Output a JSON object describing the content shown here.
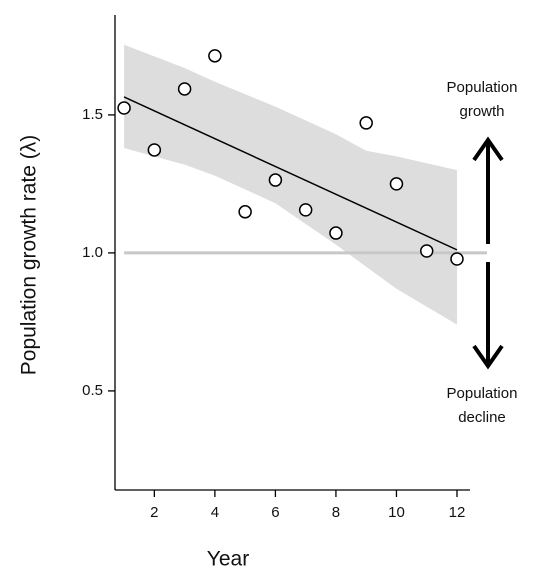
{
  "chart_data": {
    "type": "scatter",
    "ylabel": "Population growth rate (λ)",
    "xlabel": "Year",
    "x": [
      1,
      2,
      3,
      4,
      5,
      6,
      7,
      8,
      9,
      10,
      11,
      12
    ],
    "y": [
      1.525,
      1.373,
      1.594,
      1.714,
      1.149,
      1.264,
      1.156,
      1.072,
      1.471,
      1.25,
      1.007,
      0.978
    ],
    "point_color": "#000000",
    "fit": {
      "x": [
        1,
        12
      ],
      "y": [
        1.565,
        1.011
      ],
      "color": "#000000"
    },
    "band": {
      "x": [
        1,
        3,
        4,
        6,
        8,
        9,
        10,
        12
      ],
      "upper": [
        1.754,
        1.67,
        1.62,
        1.53,
        1.43,
        1.37,
        1.35,
        1.3
      ],
      "lower": [
        1.38,
        1.32,
        1.28,
        1.18,
        1.03,
        0.95,
        0.87,
        0.74
      ],
      "color": "#dddddd"
    },
    "hline": {
      "value": 1.0,
      "color": "#c8c8c8"
    },
    "xlim": [
      0.7,
      12.43
    ],
    "ylim": [
      0.141,
      1.862
    ],
    "xticks": [
      2,
      4,
      6,
      8,
      10,
      12
    ],
    "yticks": [
      0.5,
      {
        "value": 1.0,
        "label": "1.0"
      },
      1.5
    ],
    "annotations": [
      {
        "lines": [
          "Population",
          "growth"
        ]
      },
      {
        "lines": [
          "Population",
          "decline"
        ]
      }
    ]
  }
}
